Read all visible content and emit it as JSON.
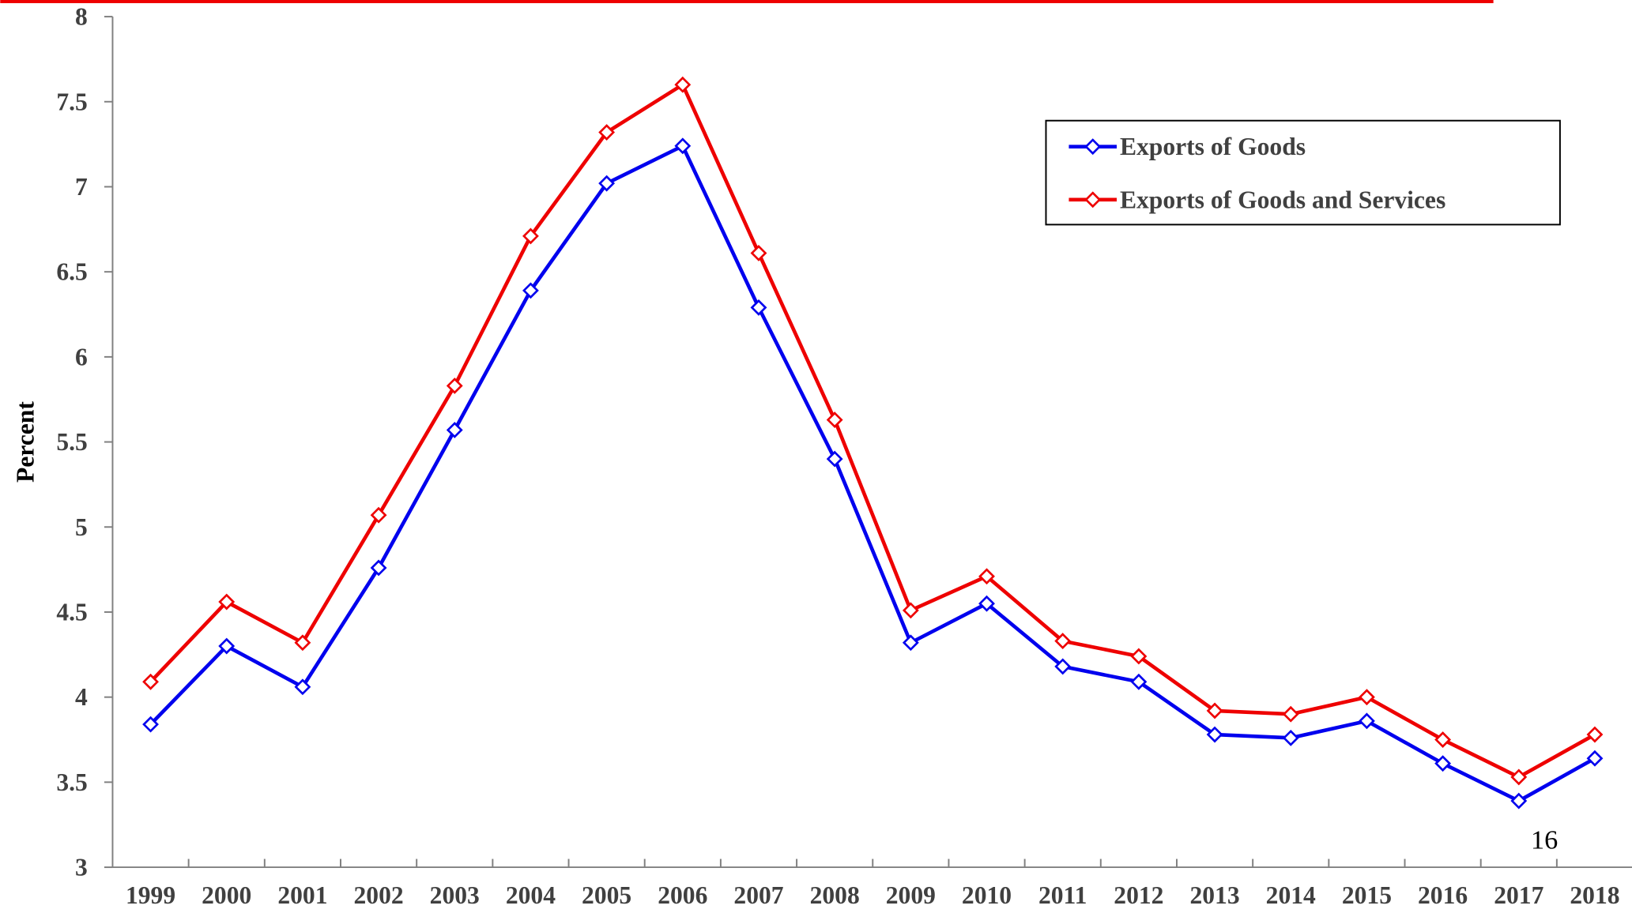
{
  "chart_data": {
    "type": "line",
    "y_label": "Percent",
    "annotation": "16",
    "categories": [
      "1999",
      "2000",
      "2001",
      "2002",
      "2003",
      "2004",
      "2005",
      "2006",
      "2007",
      "2008",
      "2009",
      "2010",
      "2011",
      "2012",
      "2013",
      "2014",
      "2015",
      "2016",
      "2017",
      "2018"
    ],
    "series": [
      {
        "name": "Exports of Goods",
        "color": "#0000ee",
        "values": [
          3.84,
          4.3,
          4.06,
          4.76,
          5.57,
          6.39,
          7.02,
          7.24,
          6.29,
          5.4,
          4.32,
          4.55,
          4.18,
          4.09,
          3.78,
          3.76,
          3.86,
          3.61,
          3.39,
          3.64
        ]
      },
      {
        "name": "Exports of Goods and Services",
        "color": "#ee0000",
        "values": [
          4.09,
          4.56,
          4.32,
          5.07,
          5.83,
          6.71,
          7.32,
          7.6,
          6.61,
          5.63,
          4.51,
          4.71,
          4.33,
          4.24,
          3.92,
          3.9,
          4.0,
          3.75,
          3.53,
          3.78
        ]
      }
    ],
    "ylim": [
      3,
      8
    ],
    "yticks": [
      3,
      3.5,
      4,
      4.5,
      5,
      5.5,
      6,
      6.5,
      7,
      7.5,
      8
    ],
    "legend": "upper right",
    "grid": false
  }
}
